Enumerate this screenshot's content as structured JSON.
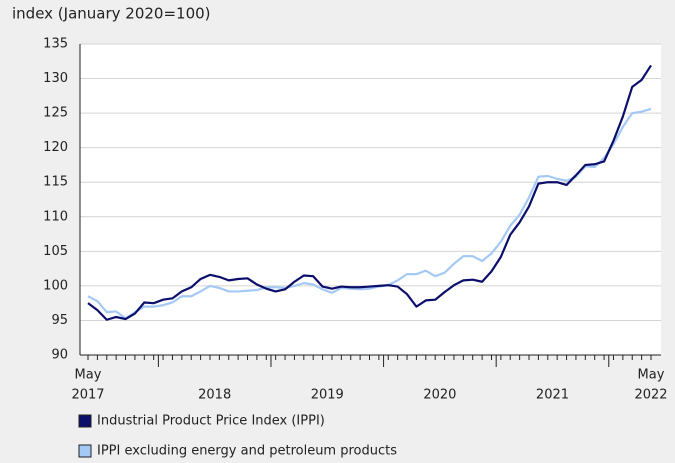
{
  "chart_data": {
    "type": "line",
    "y_axis_label": "index (January 2020=100)",
    "x_labels": [
      [
        "May",
        "2017"
      ],
      [
        "2018"
      ],
      [
        "2019"
      ],
      [
        "2020"
      ],
      [
        "2021"
      ],
      [
        "May",
        "2022"
      ]
    ],
    "ylim": [
      90,
      135
    ],
    "yticks": [
      90,
      95,
      100,
      105,
      110,
      115,
      120,
      125,
      130,
      135
    ],
    "grid": true,
    "series": [
      {
        "name": "Industrial Product Price Index (IPPI)",
        "color": "#0b0f6b",
        "values": [
          97.5,
          96.5,
          95.1,
          95.5,
          95.2,
          96.0,
          97.6,
          97.5,
          98.0,
          98.2,
          99.2,
          99.8,
          101.0,
          101.6,
          101.3,
          100.8,
          101.0,
          101.1,
          100.2,
          99.6,
          99.2,
          99.5,
          100.6,
          101.5,
          101.4,
          99.9,
          99.6,
          99.9,
          99.8,
          99.8,
          99.9,
          100.0,
          100.1,
          99.9,
          98.8,
          97.0,
          97.9,
          98.0,
          99.1,
          100.1,
          100.8,
          100.9,
          100.6,
          102.1,
          104.2,
          107.4,
          109.2,
          111.5,
          114.8,
          115.0,
          115.0,
          114.6,
          116.0,
          117.5,
          117.6,
          118.0,
          121.0,
          124.5,
          128.8,
          129.8,
          131.9
        ]
      },
      {
        "name": "IPPI excluding energy and petroleum products",
        "color": "#a4c9f4",
        "values": [
          98.5,
          97.8,
          96.2,
          96.3,
          95.3,
          96.2,
          97.0,
          97.0,
          97.2,
          97.6,
          98.5,
          98.5,
          99.2,
          100.0,
          99.7,
          99.2,
          99.2,
          99.3,
          99.4,
          99.8,
          99.8,
          99.7,
          100.0,
          100.4,
          100.2,
          99.5,
          99.0,
          99.7,
          99.6,
          99.5,
          99.6,
          99.9,
          100.1,
          100.8,
          101.7,
          101.7,
          102.2,
          101.4,
          101.9,
          103.2,
          104.3,
          104.3,
          103.6,
          104.7,
          106.4,
          108.7,
          110.3,
          112.8,
          115.8,
          115.9,
          115.5,
          115.2,
          115.8,
          117.3,
          117.2,
          118.5,
          120.5,
          123.0,
          125.0,
          125.2,
          125.6
        ]
      }
    ]
  }
}
